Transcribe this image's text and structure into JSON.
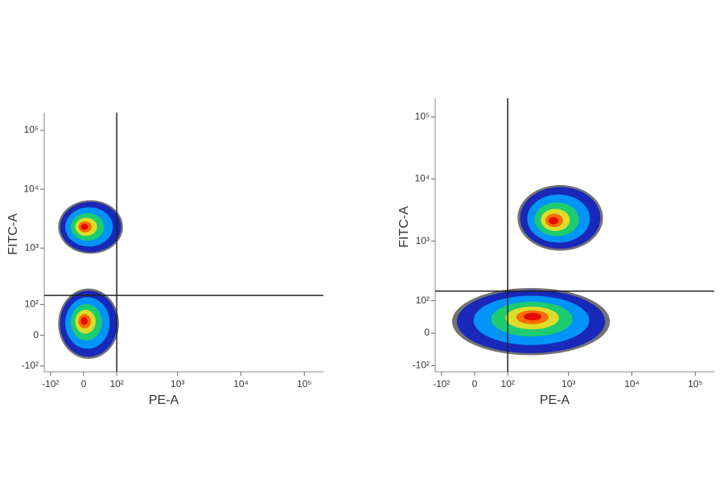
{
  "chart_data": [
    {
      "type": "density",
      "x_label": "PE-A",
      "y_label": "FITC-A",
      "scale": "biexponential",
      "xlim": [
        -130,
        200000
      ],
      "ylim": [
        -130,
        200000
      ],
      "xticks": [
        {
          "value": -100,
          "label": "-10²"
        },
        0,
        {
          "value": 100,
          "label": "10²"
        },
        {
          "value": 1000,
          "label": "10³"
        },
        {
          "value": 10000,
          "label": "10⁴"
        },
        {
          "value": 100000,
          "label": "10⁵"
        }
      ],
      "yticks": [
        {
          "value": -100,
          "label": "-10²"
        },
        0,
        {
          "value": 100,
          "label": "10²"
        },
        {
          "value": 1000,
          "label": "10³"
        },
        {
          "value": 10000,
          "label": "10⁴"
        },
        {
          "value": 100000,
          "label": "10⁵"
        }
      ],
      "gate": {
        "x": 100,
        "y": 150
      },
      "populations": [
        {
          "x": 0,
          "y": 2300,
          "x_range": [
            -70,
            130
          ],
          "y_range": [
            800,
            6500
          ]
        },
        {
          "x": 0,
          "y": 40,
          "x_range": [
            -70,
            110
          ],
          "y_range": [
            -70,
            200
          ]
        }
      ]
    },
    {
      "type": "density",
      "x_label": "PE-A",
      "y_label": "FITC-A",
      "scale": "biexponential",
      "xlim": [
        -130,
        200000
      ],
      "ylim": [
        -130,
        200000
      ],
      "xticks": [
        {
          "value": -100,
          "label": "-10²"
        },
        0,
        {
          "value": 100,
          "label": "10²"
        },
        {
          "value": 1000,
          "label": "10³"
        },
        {
          "value": 10000,
          "label": "10⁴"
        },
        {
          "value": 100000,
          "label": "10⁵"
        }
      ],
      "yticks": [
        {
          "value": -100,
          "label": "-10²"
        },
        0,
        {
          "value": 100,
          "label": "10²"
        },
        {
          "value": 1000,
          "label": "10³"
        },
        {
          "value": 10000,
          "label": "10⁴"
        },
        {
          "value": 100000,
          "label": "10⁵"
        }
      ],
      "gate": {
        "x": 100,
        "y": 150
      },
      "populations": [
        {
          "x": 560,
          "y": 2100,
          "x_range": [
            150,
            3500
          ],
          "y_range": [
            700,
            8000
          ]
        },
        {
          "x": 270,
          "y": 45,
          "x_range": [
            -60,
            4500
          ],
          "y_range": [
            -60,
            170
          ]
        }
      ]
    }
  ]
}
